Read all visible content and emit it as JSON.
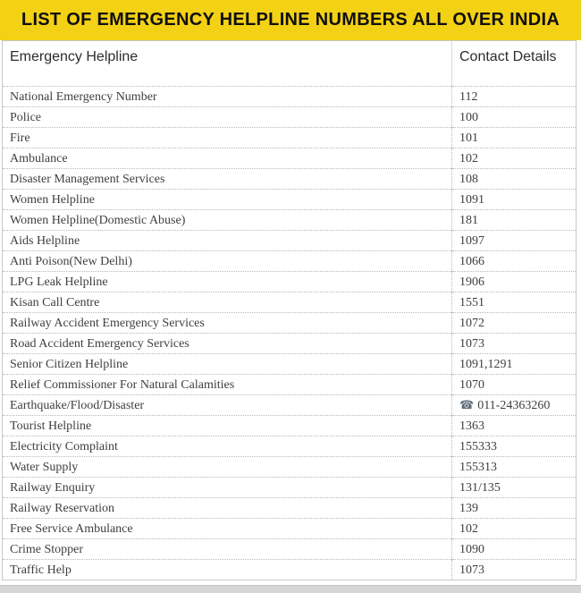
{
  "banner": {
    "title": "LIST OF EMERGENCY HELPLINE NUMBERS ALL OVER INDIA"
  },
  "table": {
    "headers": {
      "service": "Emergency Helpline",
      "contact": "Contact Details"
    },
    "rows": [
      {
        "service": "National Emergency Number",
        "contact": "112",
        "phone_icon": false
      },
      {
        "service": "Police",
        "contact": "100",
        "phone_icon": false
      },
      {
        "service": "Fire",
        "contact": "101",
        "phone_icon": false
      },
      {
        "service": "Ambulance",
        "contact": "102",
        "phone_icon": false
      },
      {
        "service": "Disaster Management Services",
        "contact": "108",
        "phone_icon": false
      },
      {
        "service": "Women Helpline",
        "contact": "1091",
        "phone_icon": false
      },
      {
        "service": "Women Helpline(Domestic Abuse)",
        "contact": "181",
        "phone_icon": false
      },
      {
        "service": "Aids Helpline",
        "contact": "1097",
        "phone_icon": false
      },
      {
        "service": "Anti Poison(New Delhi)",
        "contact": "1066",
        "phone_icon": false
      },
      {
        "service": "LPG Leak Helpline",
        "contact": "1906",
        "phone_icon": false
      },
      {
        "service": "Kisan Call Centre",
        "contact": "1551",
        "phone_icon": false
      },
      {
        "service": "Railway Accident Emergency Services",
        "contact": "1072",
        "phone_icon": false
      },
      {
        "service": "Road Accident Emergency Services",
        "contact": "1073",
        "phone_icon": false
      },
      {
        "service": "Senior Citizen Helpline",
        "contact": "1091,1291",
        "phone_icon": false
      },
      {
        "service": "Relief Commissioner For Natural Calamities",
        "contact": "1070",
        "phone_icon": false
      },
      {
        "service": "Earthquake/Flood/Disaster",
        "contact": "011-24363260",
        "phone_icon": true
      },
      {
        "service": "Tourist Helpline",
        "contact": "1363",
        "phone_icon": false
      },
      {
        "service": "Electricity Complaint",
        "contact": "155333",
        "phone_icon": false
      },
      {
        "service": "Water Supply",
        "contact": "155313",
        "phone_icon": false
      },
      {
        "service": "Railway Enquiry",
        "contact": "131/135",
        "phone_icon": false
      },
      {
        "service": "Railway Reservation",
        "contact": "139",
        "phone_icon": false
      },
      {
        "service": "Free Service Ambulance",
        "contact": "102",
        "phone_icon": false
      },
      {
        "service": "Crime Stopper",
        "contact": "1090",
        "phone_icon": false
      },
      {
        "service": "Traffic Help",
        "contact": "1073",
        "phone_icon": false
      }
    ]
  },
  "icons": {
    "telephone": "☎"
  },
  "colors": {
    "banner_bg": "#F3D114",
    "banner_text": "#101010",
    "table_border": "#c9c9c9",
    "divider": "#b8b8b8",
    "body_text": "#3f3f3f",
    "header_text": "#2d2d2d",
    "bottom_strip": "#d6d6d6",
    "phone_icon": "#5d6b76"
  }
}
